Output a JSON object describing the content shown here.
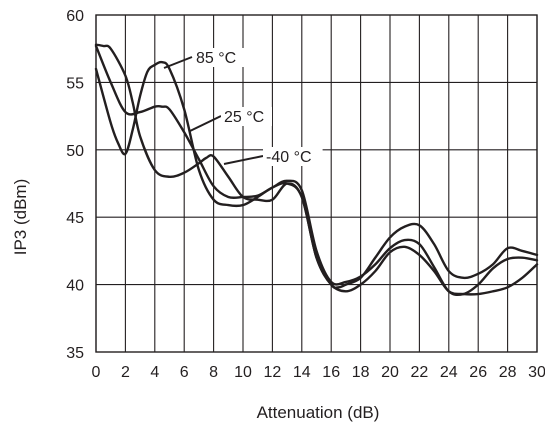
{
  "chart_data": {
    "type": "line",
    "title": "",
    "xlabel": "Attenuation (dB)",
    "ylabel": "IP3 (dBm)",
    "xlim": [
      0,
      30
    ],
    "ylim": [
      35,
      60
    ],
    "xticks": [
      "0",
      "2",
      "4",
      "6",
      "8",
      "10",
      "12",
      "14",
      "16",
      "18",
      "20",
      "22",
      "24",
      "26",
      "28",
      "30"
    ],
    "yticks": [
      "35",
      "40",
      "45",
      "50",
      "55",
      "60"
    ],
    "grid": true,
    "series": [
      {
        "name": "85 °C",
        "x": [
          0,
          1,
          1.5,
          2,
          2.5,
          3,
          3.5,
          4,
          4.5,
          5,
          6,
          7,
          8,
          9,
          10,
          11,
          12,
          13,
          14,
          15,
          16,
          16.5,
          17,
          18,
          19,
          20,
          21,
          22,
          23,
          24,
          25,
          26,
          27,
          28,
          29,
          30
        ],
        "y": [
          56,
          52,
          50.5,
          49.7,
          51.5,
          54,
          55.8,
          56.3,
          56.5,
          56,
          53,
          48.5,
          46.3,
          45.9,
          45.9,
          46.5,
          47.2,
          47.5,
          46.5,
          42,
          40,
          39.8,
          40,
          40.5,
          42,
          43.5,
          44.3,
          44.4,
          43,
          41,
          40.5,
          40.8,
          41.5,
          42.7,
          42.5,
          42.2
        ]
      },
      {
        "name": "25 °C",
        "x": [
          0,
          1,
          2,
          3,
          4,
          4.5,
          5,
          6,
          7,
          8,
          9,
          10,
          11,
          12,
          13,
          14,
          15,
          16,
          17,
          18,
          19,
          20,
          21,
          22,
          23,
          24,
          25,
          26,
          27,
          28,
          29,
          30
        ],
        "y": [
          57.7,
          55,
          52.8,
          52.8,
          53.2,
          53.2,
          53,
          51.3,
          49.3,
          47.3,
          46.5,
          46.5,
          46.6,
          47.2,
          47.7,
          47,
          42.5,
          40.2,
          40.2,
          40.6,
          41.5,
          42.7,
          43.3,
          43,
          41.3,
          39.5,
          39.3,
          40,
          41.2,
          41.9,
          42,
          41.8
        ]
      },
      {
        "name": "-40 °C",
        "x": [
          0,
          0.5,
          1,
          2,
          2.5,
          3,
          4,
          5,
          6,
          7,
          7.5,
          8,
          9,
          10,
          11,
          12,
          13,
          14,
          15,
          16,
          17,
          18,
          19,
          20,
          21,
          22,
          23,
          24,
          25,
          26,
          27,
          28,
          29,
          30
        ],
        "y": [
          57.8,
          57.7,
          57.5,
          55.5,
          53.5,
          51,
          48.5,
          48,
          48.3,
          49,
          49.4,
          49.5,
          48,
          46.5,
          46.3,
          46.3,
          47.5,
          46.5,
          42,
          40,
          39.5,
          40,
          41,
          42.4,
          42.8,
          42.2,
          41,
          39.5,
          39.3,
          39.3,
          39.5,
          39.8,
          40.5,
          41.5
        ]
      }
    ]
  }
}
